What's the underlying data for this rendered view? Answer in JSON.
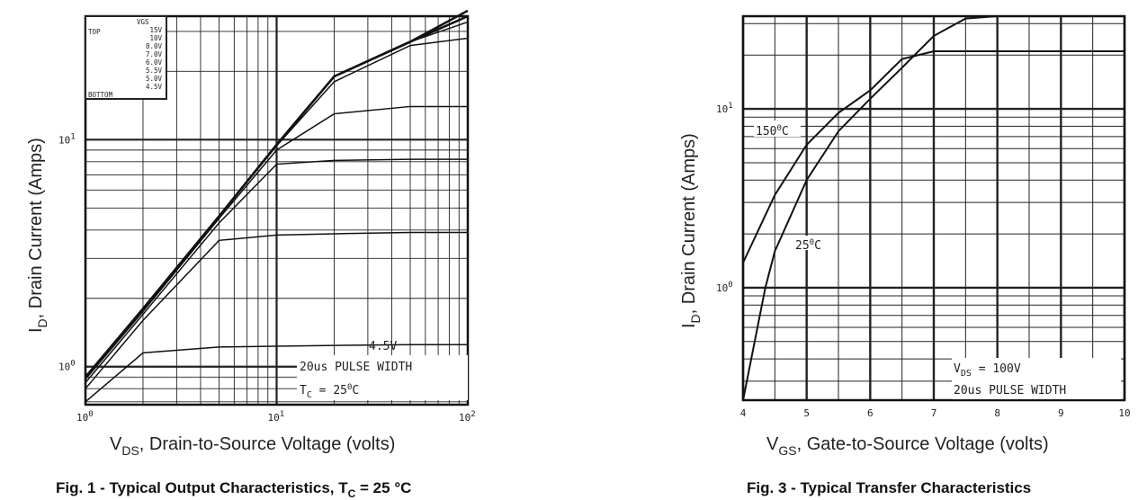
{
  "chart_data": [
    {
      "type": "line",
      "title": "",
      "xscale": "log",
      "yscale": "log",
      "xlim": [
        1,
        100
      ],
      "ylim": [
        0.68,
        35
      ],
      "grid": true,
      "xlabel": {
        "main": "V",
        "sub": "DS",
        "rest": ", Drain-to-Source Voltage (volts)"
      },
      "ylabel": {
        "main": "I",
        "sub": "D",
        "rest": ", Drain Current (Amps)"
      },
      "xticks": [
        {
          "base": "10",
          "exp": "0",
          "v": 1
        },
        {
          "base": "10",
          "exp": "1",
          "v": 10
        },
        {
          "base": "10",
          "exp": "2",
          "v": 100
        }
      ],
      "yticks": [
        {
          "base": "10",
          "exp": "0",
          "v": 1
        },
        {
          "base": "10",
          "exp": "1",
          "v": 10
        }
      ],
      "legend": {
        "header": "VGS",
        "top": "TOP",
        "bottom": "BOTTOM",
        "entries": [
          "15V",
          "10V",
          "8.0V",
          "7.0V",
          "6.0V",
          "5.5V",
          "5.0V",
          "4.5V"
        ],
        "placement": "top-left"
      },
      "x": [
        1,
        2,
        5,
        10,
        20,
        50,
        100
      ],
      "series": [
        {
          "name": "15V",
          "values": [
            0.9,
            1.8,
            4.6,
            9.5,
            19,
            27,
            37
          ]
        },
        {
          "name": "10V",
          "values": [
            0.9,
            1.8,
            4.6,
            9.5,
            19,
            27,
            35
          ]
        },
        {
          "name": "8.0V",
          "values": [
            0.9,
            1.8,
            4.6,
            9.5,
            19,
            27,
            33
          ]
        },
        {
          "name": "7.0V",
          "values": [
            0.9,
            1.8,
            4.6,
            9.4,
            18,
            26,
            28
          ]
        },
        {
          "name": "6.0V",
          "values": [
            0.88,
            1.75,
            4.5,
            9,
            13,
            14,
            14
          ]
        },
        {
          "name": "5.5V",
          "values": [
            0.85,
            1.7,
            4.3,
            7.8,
            8.1,
            8.2,
            8.2
          ]
        },
        {
          "name": "5.0V",
          "values": [
            0.8,
            1.6,
            3.6,
            3.8,
            3.85,
            3.9,
            3.9
          ]
        },
        {
          "name": "4.5V",
          "values": [
            0.7,
            1.15,
            1.22,
            1.23,
            1.24,
            1.25,
            1.25
          ]
        }
      ],
      "annotations": {
        "curve_label": "4.5V",
        "pulse": "20us PULSE WIDTH",
        "tc_main": "T",
        "tc_sub": "C",
        "tc_rest": " = 25",
        "tc_deg": "0",
        "tc_unit": "C"
      },
      "caption": {
        "main": "Fig. 1 - Typical Output Characteristics, T",
        "sub": "C",
        "rest": " = 25 °C"
      }
    },
    {
      "type": "line",
      "title": "",
      "xscale": "linear",
      "yscale": "log",
      "xlim": [
        4,
        10
      ],
      "ylim": [
        0.235,
        33
      ],
      "grid": true,
      "xlabel": {
        "main": "V",
        "sub": "GS",
        "rest": ", Gate-to-Source Voltage (volts)"
      },
      "ylabel": {
        "main": "I",
        "sub": "D",
        "rest": ", Drain Current (Amps)"
      },
      "xticks": [
        "4",
        "5",
        "6",
        "7",
        "8",
        "9",
        "10"
      ],
      "yticks": [
        {
          "base": "10",
          "exp": "0",
          "v": 1
        },
        {
          "base": "10",
          "exp": "1",
          "v": 10
        }
      ],
      "series": [
        {
          "name": "150°C",
          "x": [
            4,
            4.5,
            5,
            5.5,
            6,
            6.5,
            7,
            8,
            9,
            10
          ],
          "values": [
            1.38,
            3.3,
            6.3,
            9.5,
            12.7,
            19,
            21,
            21,
            21,
            21
          ]
        },
        {
          "name": "25°C",
          "x": [
            4,
            4.35,
            4.5,
            5,
            5.5,
            6,
            6.5,
            7,
            7.5,
            8,
            9,
            10
          ],
          "values": [
            0.235,
            1.0,
            1.6,
            4.0,
            7.5,
            11.4,
            17,
            25.6,
            32,
            33,
            33,
            33
          ]
        }
      ],
      "series_labels": {
        "hot_main": "150",
        "hot_deg": "0",
        "hot_unit": "C",
        "cold_main": "25",
        "cold_deg": "0",
        "cold_unit": "C"
      },
      "annotations": {
        "vds_main": "V",
        "vds_sub": "DS",
        "vds_rest": " = 100V",
        "pulse": "20us PULSE WIDTH"
      },
      "caption": "Fig. 3 - Typical Transfer Characteristics"
    }
  ]
}
